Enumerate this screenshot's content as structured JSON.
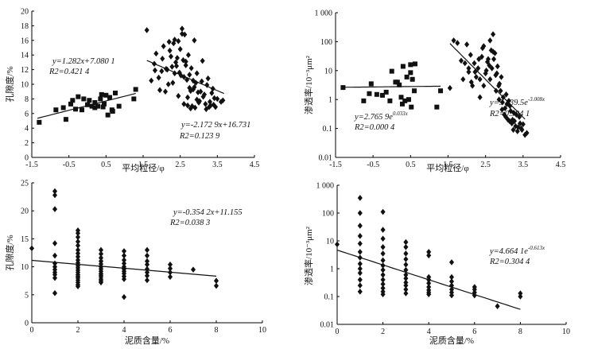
{
  "chart_data": [
    {
      "id": "p1",
      "type": "scatter",
      "xlabel": "平均粒径/φ",
      "ylabel": "孔隙度/%",
      "xlim": [
        -1.5,
        4.5
      ],
      "ylim": [
        0,
        20
      ],
      "xticks": [
        -1.5,
        -0.5,
        0.5,
        1.5,
        2.5,
        3.5,
        4.5
      ],
      "xtick_labels": [
        "-1.5",
        "-0.5",
        "0.5",
        "1.5",
        "2.5",
        "3.5",
        "4.5"
      ],
      "yticks": [
        0,
        2,
        4,
        6,
        8,
        10,
        12,
        14,
        16,
        18,
        20
      ],
      "ytick_labels": [
        "0",
        "2",
        "4",
        "6",
        "8",
        "10",
        "12",
        "14",
        "16",
        "18",
        "20"
      ],
      "yscale": "linear",
      "series": [
        {
          "marker": "square",
          "x": [
            -1.3,
            -0.85,
            -0.65,
            -0.58,
            -0.4,
            -0.25,
            -0.1,
            0.0,
            0.2,
            0.28,
            0.35,
            0.45,
            0.5,
            0.55,
            0.6,
            0.68,
            0.75,
            0.85,
            0.2,
            -0.15,
            0.05,
            0.42,
            -0.45,
            1.25,
            1.3,
            0.12,
            0.38,
            0.66,
            -0.32
          ],
          "y": [
            4.8,
            6.5,
            6.8,
            5.2,
            7.8,
            8.3,
            8.0,
            7.2,
            7.5,
            7.0,
            8.0,
            7.3,
            8.5,
            5.8,
            8.2,
            6.3,
            8.8,
            7.0,
            6.8,
            6.5,
            7.8,
            6.9,
            7.3,
            8.0,
            9.3,
            7.0,
            8.6,
            6.5,
            6.6
          ]
        },
        {
          "marker": "diamond",
          "x": [
            1.6,
            1.72,
            1.8,
            1.85,
            1.95,
            2.0,
            2.05,
            2.1,
            2.15,
            2.2,
            2.25,
            2.3,
            2.35,
            2.4,
            2.45,
            2.5,
            2.55,
            2.6,
            2.62,
            2.65,
            2.7,
            2.72,
            2.75,
            2.8,
            2.82,
            2.85,
            2.88,
            2.9,
            2.95,
            3.0,
            3.05,
            3.1,
            3.15,
            3.2,
            3.25,
            3.3,
            3.35,
            3.4,
            3.45,
            3.5,
            3.6,
            3.65,
            2.18,
            2.28,
            2.38,
            2.48,
            2.58,
            2.68,
            2.78,
            2.92,
            3.02,
            3.12,
            3.22,
            3.32,
            3.42,
            2.52,
            2.42,
            2.32,
            2.22,
            2.12,
            2.02,
            1.92,
            1.82,
            2.88,
            2.98,
            2.78,
            2.7,
            2.6,
            3.08,
            3.18,
            3.28,
            3.38,
            2.35,
            2.45,
            2.55,
            2.65,
            2.75,
            2.85,
            2.95
          ],
          "y": [
            17.4,
            10.5,
            12.8,
            14.2,
            9.2,
            11.8,
            15.2,
            9.0,
            12.0,
            15.8,
            13.8,
            10.2,
            11.5,
            12.5,
            8.4,
            14.8,
            17.6,
            11.0,
            16.8,
            12.6,
            8.2,
            14.0,
            9.5,
            12.2,
            7.0,
            10.5,
            16.0,
            6.8,
            11.5,
            7.5,
            9.0,
            13.2,
            8.6,
            6.6,
            10.8,
            7.6,
            8.8,
            7.2,
            6.9,
            8.0,
            7.6,
            7.8,
            10.0,
            12.4,
            13.0,
            11.6,
            13.3,
            10.6,
            9.1,
            10.2,
            7.7,
            8.3,
            9.9,
            7.1,
            8.1,
            11.2,
            13.6,
            15.6,
            14.6,
            12.1,
            13.5,
            10.9,
            11.9,
            9.6,
            8.9,
            6.7,
            7.1,
            7.3,
            10.4,
            7.3,
            6.9,
            9.4,
            16.1,
            15.9,
            16.9,
            13.1,
            11.3,
            9.3,
            7.9
          ]
        }
      ],
      "fits": [
        {
          "slope": 1.282,
          "intercept": 7.0801,
          "x_range": [
            -1.35,
            1.3
          ]
        },
        {
          "slope": -2.1729,
          "intercept": 16.731,
          "x_range": [
            1.6,
            3.68
          ]
        }
      ],
      "annotations": [
        {
          "line1": "y=1.282x+7.080 1",
          "line2": "R2=0.421 4"
        },
        {
          "line1": "y=-2.172 9x+16.731",
          "line2": "R2=0.123 9"
        }
      ]
    },
    {
      "id": "p2",
      "type": "scatter",
      "xlabel": "平均粒径/φ",
      "ylabel": "渗透率/10⁻³μm²",
      "xlim": [
        -1.5,
        4.5
      ],
      "ylim": [
        0.01,
        1000
      ],
      "xticks": [
        -1.5,
        -0.5,
        0.5,
        1.5,
        2.5,
        3.5,
        4.5
      ],
      "xtick_labels": [
        "-1.5",
        "-0.5",
        "0.5",
        "1.5",
        "2.5",
        "3.5",
        "4.5"
      ],
      "yticks": [
        0.01,
        0.1,
        1,
        10,
        100,
        1000
      ],
      "ytick_labels": [
        "0.01",
        "0.1",
        "1",
        "10",
        "100",
        "1 000"
      ],
      "yscale": "log",
      "series": [
        {
          "marker": "square",
          "x": [
            -1.3,
            -0.6,
            -0.4,
            -0.25,
            -0.15,
            0.0,
            0.1,
            0.2,
            0.25,
            0.3,
            0.4,
            0.5,
            0.55,
            0.6,
            0.62,
            0.52,
            0.45,
            0.35,
            -0.05,
            -0.55,
            -0.75,
            0.15,
            1.2,
            1.3,
            0.5,
            0.28
          ],
          "y": [
            2.6,
            1.6,
            1.5,
            1.4,
            1.8,
            9.5,
            4.0,
            3.2,
            1.2,
            14.0,
            6.0,
            16.0,
            5.0,
            2.0,
            17.0,
            0.55,
            1.0,
            0.9,
            0.9,
            3.5,
            0.9,
            4.0,
            0.55,
            2.0,
            8.5,
            0.7
          ],
          "sy": [
            0,
            0,
            0,
            0,
            0,
            0,
            0,
            0,
            0,
            0,
            0,
            0,
            0,
            0,
            0,
            0,
            0,
            0,
            0,
            0,
            0,
            0,
            0,
            0,
            0,
            0
          ]
        },
        {
          "marker": "diamond",
          "x": [
            1.55,
            1.65,
            1.75,
            1.85,
            1.9,
            2.0,
            2.05,
            2.1,
            2.15,
            2.2,
            2.25,
            2.3,
            2.35,
            2.4,
            2.45,
            2.5,
            2.55,
            2.6,
            2.65,
            2.7,
            2.75,
            2.8,
            2.85,
            2.9,
            2.95,
            3.0,
            3.05,
            3.1,
            3.15,
            3.2,
            3.25,
            3.3,
            3.35,
            3.4,
            3.45,
            3.5,
            3.55,
            3.6,
            2.12,
            2.22,
            2.32,
            2.42,
            2.52,
            2.62,
            2.72,
            2.82,
            2.92,
            3.02,
            3.12,
            3.22,
            3.32,
            3.42,
            2.57,
            2.67,
            2.77,
            2.87,
            2.97,
            3.07,
            3.17,
            3.27,
            3.37,
            3.47,
            1.95,
            2.05,
            2.35,
            2.45,
            2.62,
            2.7,
            2.78,
            2.86,
            2.94,
            3.04,
            3.14,
            3.24
          ],
          "y": [
            2.5,
            110,
            90,
            22,
            5,
            80,
            12,
            35,
            3,
            18,
            6,
            12,
            1.2,
            30,
            70,
            8,
            20,
            15,
            50,
            180,
            40,
            8,
            3,
            2,
            0.8,
            0.3,
            1.5,
            0.2,
            0.6,
            0.15,
            0.35,
            0.12,
            0.08,
            0.25,
            0.1,
            0.14,
            0.06,
            0.07,
            4,
            9,
            25,
            60,
            10,
            5,
            25,
            14,
            6,
            0.5,
            0.9,
            0.2,
            0.3,
            0.15,
            25,
            12,
            7,
            3.5,
            1.2,
            0.7,
            0.4,
            0.18,
            0.11,
            0.09,
            18,
            9,
            5,
            3,
            110,
            45,
            2,
            1,
            0.45,
            0.25,
            0.18,
            0.09
          ]
        }
      ],
      "fits": [
        {
          "model": "exp",
          "a": 2.7659,
          "b": 0.033,
          "x_range": [
            -1.3,
            1.3
          ]
        },
        {
          "model": "exp",
          "a": 9139.5,
          "b": -3.008,
          "x_range": [
            1.55,
            3.55
          ]
        }
      ],
      "annotations": [
        {
          "line1": "y=2.765 9e",
          "sup": "0.033x",
          "line2": "R2=0.000 4"
        },
        {
          "line1": "y=9 139.5e",
          "sup": "-3.008x",
          "line2": "R2=0.394 1"
        }
      ]
    },
    {
      "id": "p3",
      "type": "scatter",
      "xlabel": "泥质含量/%",
      "ylabel": "孔隙度/%",
      "xlim": [
        0,
        10
      ],
      "ylim": [
        0,
        25
      ],
      "xticks": [
        0,
        2,
        4,
        6,
        8,
        10
      ],
      "xtick_labels": [
        "0",
        "2",
        "4",
        "6",
        "8",
        "10"
      ],
      "yticks": [
        0,
        5,
        10,
        15,
        20,
        25
      ],
      "ytick_labels": [
        "0",
        "5",
        "10",
        "15",
        "20",
        "25"
      ],
      "yscale": "linear",
      "series": [
        {
          "marker": "diamond",
          "x": [
            0,
            1,
            1,
            1,
            1,
            1,
            1,
            1,
            1,
            1,
            1,
            1,
            1,
            2,
            2,
            2,
            2,
            2,
            2,
            2,
            2,
            2,
            2,
            2,
            2,
            2,
            2,
            2,
            2,
            2,
            2,
            2,
            2,
            2,
            3,
            3,
            3,
            3,
            3,
            3,
            3,
            3,
            3,
            3,
            3,
            3,
            3,
            3,
            4,
            4,
            4,
            4,
            4,
            4,
            4,
            4,
            4,
            4,
            4,
            5,
            5,
            5,
            5,
            5,
            5,
            5,
            5,
            6,
            6,
            6,
            6,
            7,
            8,
            8
          ],
          "y": [
            13.3,
            23.5,
            22.8,
            20.3,
            14.2,
            12.0,
            10.6,
            10.0,
            9.5,
            9.0,
            8.6,
            8.0,
            5.3,
            16.5,
            16.0,
            15.3,
            14.5,
            13.8,
            13.0,
            12.4,
            11.8,
            11.2,
            10.7,
            10.2,
            9.8,
            9.4,
            9.0,
            8.6,
            8.3,
            8.0,
            7.6,
            7.2,
            6.8,
            6.5,
            13.0,
            12.3,
            11.6,
            11.0,
            10.5,
            10.0,
            9.6,
            9.2,
            8.8,
            8.5,
            8.2,
            7.8,
            7.5,
            7.2,
            12.8,
            12.0,
            11.2,
            10.6,
            10.0,
            9.6,
            9.2,
            8.8,
            8.3,
            7.8,
            4.6,
            13.0,
            12.0,
            11.0,
            10.4,
            9.6,
            9.0,
            8.4,
            7.6,
            10.4,
            9.7,
            9.0,
            8.2,
            9.5,
            7.5,
            6.6
          ]
        }
      ],
      "fits": [
        {
          "slope": -0.3542,
          "intercept": 11.155,
          "x_range": [
            0,
            8
          ]
        }
      ],
      "annotations": [
        {
          "line1": "y=-0.354 2x+11.155",
          "line2": "R2=0.038 3"
        }
      ]
    },
    {
      "id": "p4",
      "type": "scatter",
      "xlabel": "泥质含量/%",
      "ylabel": "渗透率/10⁻³μm²",
      "xlim": [
        0,
        10
      ],
      "ylim": [
        0.01,
        1000
      ],
      "xticks": [
        0,
        2,
        4,
        6,
        8,
        10
      ],
      "xtick_labels": [
        "0",
        "2",
        "4",
        "6",
        "8",
        "10"
      ],
      "yticks": [
        0.01,
        0.1,
        1,
        10,
        100,
        1000
      ],
      "ytick_labels": [
        "0.01",
        "0.1",
        "1",
        "10",
        "100",
        "1 000"
      ],
      "yscale": "log",
      "series": [
        {
          "marker": "diamond",
          "x": [
            0,
            1,
            1,
            1,
            1,
            1,
            1,
            1,
            1,
            1,
            1,
            1,
            1,
            1,
            2,
            2,
            2,
            2,
            2,
            2,
            2,
            2,
            2,
            2,
            2,
            2,
            2,
            2,
            3,
            3,
            3,
            3,
            3,
            3,
            3,
            3,
            3,
            3,
            3,
            3,
            4,
            4,
            4,
            4,
            4,
            4,
            4,
            4,
            4,
            5,
            5,
            5,
            5,
            5,
            5,
            5,
            6,
            6,
            6,
            6,
            7,
            8,
            8
          ],
          "y": [
            7.5,
            350,
            100,
            35,
            15,
            8,
            4,
            2.5,
            1.5,
            1,
            0.7,
            0.4,
            0.25,
            0.15,
            110,
            25,
            12,
            6,
            3.5,
            2,
            1.3,
            0.9,
            0.6,
            0.4,
            0.28,
            0.2,
            0.15,
            0.12,
            9,
            6,
            3.5,
            2.2,
            1.4,
            0.9,
            0.6,
            0.45,
            0.32,
            0.25,
            0.18,
            0.13,
            4,
            3,
            0.5,
            0.4,
            0.3,
            0.22,
            0.17,
            0.14,
            0.12,
            1.7,
            0.5,
            0.35,
            0.25,
            0.18,
            0.14,
            0.11,
            0.22,
            0.18,
            0.14,
            0.11,
            0.045,
            0.13,
            0.1
          ]
        }
      ],
      "fits": [
        {
          "model": "exp",
          "a": 4.6641,
          "b": -0.613,
          "x_range": [
            0,
            8
          ]
        }
      ],
      "annotations": [
        {
          "line1": "y=4.664 1e",
          "sup": "-0.613x",
          "line2": "R2=0.304 4"
        }
      ]
    }
  ]
}
